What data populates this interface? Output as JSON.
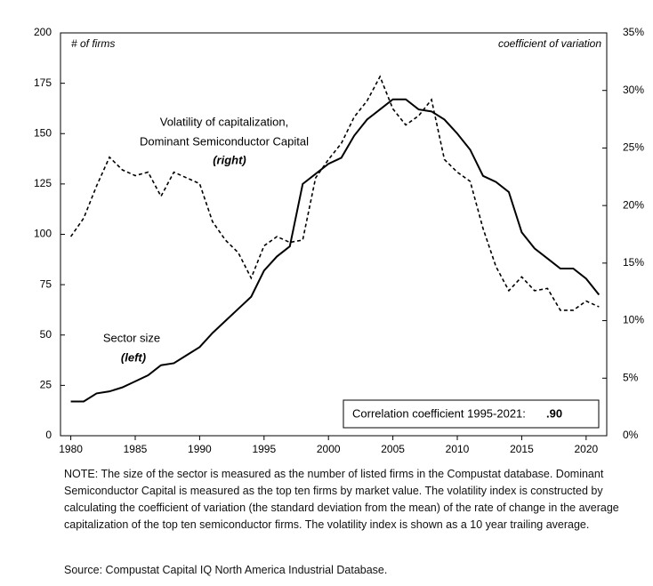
{
  "chart_data": {
    "type": "line",
    "y_label": "# of firms",
    "y2_label": "coefficient of variation",
    "annotations": [
      "Volatility of capitalization,",
      "Dominant Semiconductor Capital",
      "(right)",
      "Sector size",
      "(left)"
    ],
    "correlation_label": "Correlation coefficient 1995-2021:",
    "correlation_value": ".90",
    "x": [
      1980,
      1981,
      1982,
      1983,
      1984,
      1985,
      1986,
      1987,
      1988,
      1989,
      1990,
      1991,
      1992,
      1993,
      1994,
      1995,
      1996,
      1997,
      1998,
      1999,
      2000,
      2001,
      2002,
      2003,
      2004,
      2005,
      2006,
      2007,
      2008,
      2009,
      2010,
      2011,
      2012,
      2013,
      2014,
      2015,
      2016,
      2017,
      2018,
      2019,
      2020,
      2021
    ],
    "series": [
      {
        "name": "Sector size",
        "color": "#000000",
        "axis": "y",
        "values": [
          17,
          17,
          21,
          22,
          24,
          27,
          30,
          35,
          36,
          40,
          44,
          51,
          57,
          63,
          69,
          82,
          89,
          94,
          125,
          130,
          135,
          138,
          149,
          157,
          162,
          167,
          167,
          162,
          161,
          157,
          150,
          142,
          129,
          126,
          121,
          101,
          93,
          88,
          83,
          83,
          78,
          70
        ]
      },
      {
        "name": "Volatility of capitalization",
        "color": "#000000",
        "axis": "y2",
        "dashed": true,
        "values": [
          17.3,
          18.9,
          21.7,
          24.2,
          23.1,
          22.6,
          22.9,
          20.8,
          22.9,
          22.4,
          21.9,
          18.6,
          17.0,
          15.9,
          13.7,
          16.5,
          17.3,
          16.8,
          17.0,
          22.4,
          24.0,
          25.4,
          27.7,
          29.1,
          31.2,
          28.4,
          27.0,
          27.8,
          29.2,
          24.0,
          22.9,
          22.1,
          18.0,
          14.7,
          12.6,
          13.8,
          12.6,
          12.8,
          10.9,
          10.9,
          11.7,
          11.2
        ]
      }
    ],
    "xlim": [
      1979.2,
      2021.6
    ],
    "xticks": [
      1980,
      1985,
      1990,
      1995,
      2000,
      2005,
      2010,
      2015,
      2020
    ],
    "ylim": [
      0,
      200
    ],
    "yticks": [
      0,
      25,
      50,
      75,
      100,
      125,
      150,
      175,
      200
    ],
    "y2lim": [
      0,
      35
    ],
    "y2ticks": [
      {
        "value": 0,
        "label": "0%"
      },
      {
        "value": 5,
        "label": "5%"
      },
      {
        "value": 10,
        "label": "10%"
      },
      {
        "value": 15,
        "label": "15%"
      },
      {
        "value": 20,
        "label": "20%"
      },
      {
        "value": 25,
        "label": "25%"
      },
      {
        "value": 30,
        "label": "30%"
      },
      {
        "value": 35,
        "label": "35%"
      }
    ],
    "grid": false
  },
  "note": "NOTE: The size of the sector is measured as the number of listed firms in the Compustat database. Dominant Semiconductor Capital is measured as the top ten firms by market value. The volatility index is constructed by calculating the coefficient of variation (the standard deviation from the mean) of the rate of change in the average capitalization of the top ten semiconductor firms. The volatility index is shown as a 10 year trailing average.",
  "source": "Source: Compustat Capital IQ North America Industrial Database."
}
